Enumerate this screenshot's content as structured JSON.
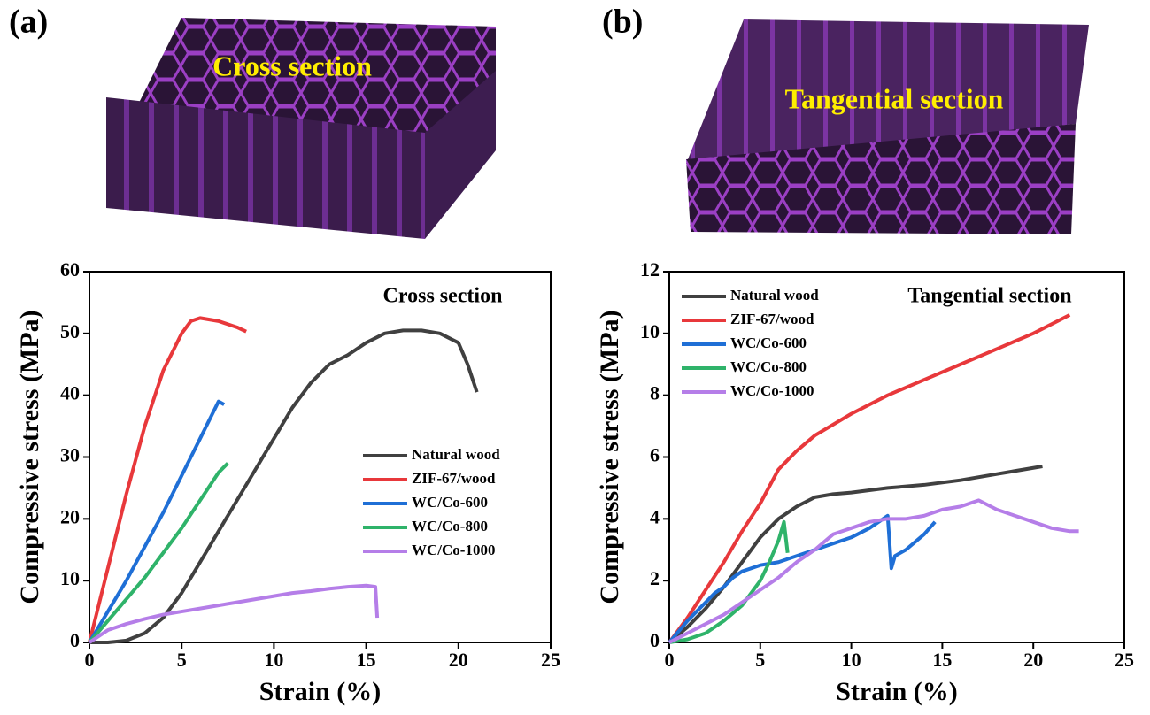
{
  "panels": [
    {
      "label": "(a)",
      "image_label": "Cross section"
    },
    {
      "label": "(b)",
      "image_label": "Tangential section"
    }
  ],
  "chart_data": [
    {
      "type": "line",
      "annotation": "Cross section",
      "xlabel": "Strain (%)",
      "ylabel": "Compressive stress (MPa)",
      "xlim": [
        0,
        25
      ],
      "xticks": [
        0,
        5,
        10,
        15,
        20,
        25
      ],
      "ylim": [
        0,
        60
      ],
      "yticks": [
        0,
        10,
        20,
        30,
        40,
        50,
        60
      ],
      "legend": "center right",
      "series": [
        {
          "name": "Natural wood",
          "color": "#404040",
          "x": [
            0,
            1,
            2,
            3,
            4,
            5,
            6,
            7,
            8,
            9,
            10,
            11,
            12,
            13,
            14,
            15,
            16,
            17,
            18,
            19,
            20,
            20.5,
            21
          ],
          "values": [
            0,
            0,
            0.3,
            1.5,
            4,
            8,
            13,
            18,
            23,
            28,
            33,
            38,
            42,
            45,
            46.5,
            48.5,
            50,
            50.5,
            50.5,
            50,
            48.5,
            45,
            40.5
          ]
        },
        {
          "name": "ZIF-67/wood",
          "color": "#e8383b",
          "x": [
            0,
            1,
            2,
            3,
            4,
            5,
            5.5,
            6,
            7,
            7.5,
            8,
            8.5
          ],
          "values": [
            0,
            12,
            24,
            35,
            44,
            50,
            52,
            52.5,
            52,
            51.5,
            51,
            50.3
          ]
        },
        {
          "name": "WC/Co-600",
          "color": "#1f6fd6",
          "x": [
            0,
            1,
            2,
            3,
            4,
            5,
            6,
            7,
            7.3
          ],
          "values": [
            0,
            5,
            10,
            15.5,
            21,
            27,
            33,
            39,
            38.5
          ]
        },
        {
          "name": "WC/Co-800",
          "color": "#2fb36a",
          "x": [
            0,
            1,
            2,
            3,
            4,
            5,
            6,
            7,
            7.5
          ],
          "values": [
            0,
            3.5,
            7,
            10.5,
            14.5,
            18.5,
            23,
            27.5,
            29
          ]
        },
        {
          "name": "WC/Co-1000",
          "color": "#b57ee8",
          "x": [
            0,
            1,
            2,
            3,
            4,
            5,
            6,
            7,
            8,
            9,
            10,
            11,
            12,
            13,
            14,
            15,
            15.5,
            15.6
          ],
          "values": [
            0,
            2,
            3,
            3.8,
            4.5,
            5,
            5.5,
            6,
            6.5,
            7,
            7.5,
            8,
            8.3,
            8.7,
            9,
            9.2,
            9,
            4
          ]
        }
      ]
    },
    {
      "type": "line",
      "annotation": "Tangential section",
      "xlabel": "Strain (%)",
      "ylabel": "Compressive stress (MPa)",
      "xlim": [
        0,
        25
      ],
      "xticks": [
        0,
        5,
        10,
        15,
        20,
        25
      ],
      "ylim": [
        0,
        12
      ],
      "yticks": [
        0,
        2,
        4,
        6,
        8,
        10,
        12
      ],
      "legend": "upper left",
      "series": [
        {
          "name": "Natural wood",
          "color": "#404040",
          "x": [
            0,
            1,
            2,
            3,
            4,
            5,
            6,
            7,
            8,
            9,
            10,
            12,
            14,
            16,
            18,
            20,
            20.5
          ],
          "values": [
            0,
            0.5,
            1.1,
            1.8,
            2.6,
            3.4,
            4,
            4.4,
            4.7,
            4.8,
            4.85,
            5,
            5.1,
            5.25,
            5.45,
            5.65,
            5.7
          ]
        },
        {
          "name": "ZIF-67/wood",
          "color": "#e8383b",
          "x": [
            0,
            1,
            2,
            3,
            4,
            5,
            6,
            7,
            8,
            10,
            12,
            14,
            16,
            18,
            20,
            22
          ],
          "values": [
            0,
            0.8,
            1.7,
            2.6,
            3.6,
            4.5,
            5.6,
            6.2,
            6.7,
            7.4,
            8,
            8.5,
            9,
            9.5,
            10,
            10.6
          ]
        },
        {
          "name": "WC/Co-600",
          "color": "#1f6fd6",
          "x": [
            0,
            1,
            1.5,
            2,
            2.5,
            3,
            3.5,
            4,
            5,
            6,
            7,
            8,
            9,
            10,
            11,
            12,
            12.2,
            12.4,
            13,
            14,
            14.6
          ],
          "values": [
            0,
            0.7,
            1,
            1.3,
            1.6,
            1.8,
            2.1,
            2.3,
            2.5,
            2.6,
            2.8,
            3,
            3.2,
            3.4,
            3.7,
            4.1,
            2.4,
            2.8,
            3,
            3.5,
            3.9
          ]
        },
        {
          "name": "WC/Co-800",
          "color": "#2fb36a",
          "x": [
            0,
            1,
            2,
            3,
            4,
            5,
            5.5,
            6,
            6.3,
            6.5
          ],
          "values": [
            0,
            0.1,
            0.3,
            0.7,
            1.2,
            2,
            2.6,
            3.3,
            3.9,
            2.9
          ]
        },
        {
          "name": "WC/Co-1000",
          "color": "#b57ee8",
          "x": [
            0,
            1,
            2,
            3,
            4,
            5,
            6,
            7,
            8,
            9,
            10,
            11,
            12,
            13,
            14,
            15,
            16,
            17,
            18,
            19,
            20,
            21,
            22,
            22.5
          ],
          "values": [
            0,
            0.3,
            0.6,
            0.9,
            1.3,
            1.7,
            2.1,
            2.6,
            3,
            3.5,
            3.7,
            3.9,
            4,
            4,
            4.1,
            4.3,
            4.4,
            4.6,
            4.3,
            4.1,
            3.9,
            3.7,
            3.6,
            3.6
          ]
        }
      ]
    }
  ]
}
